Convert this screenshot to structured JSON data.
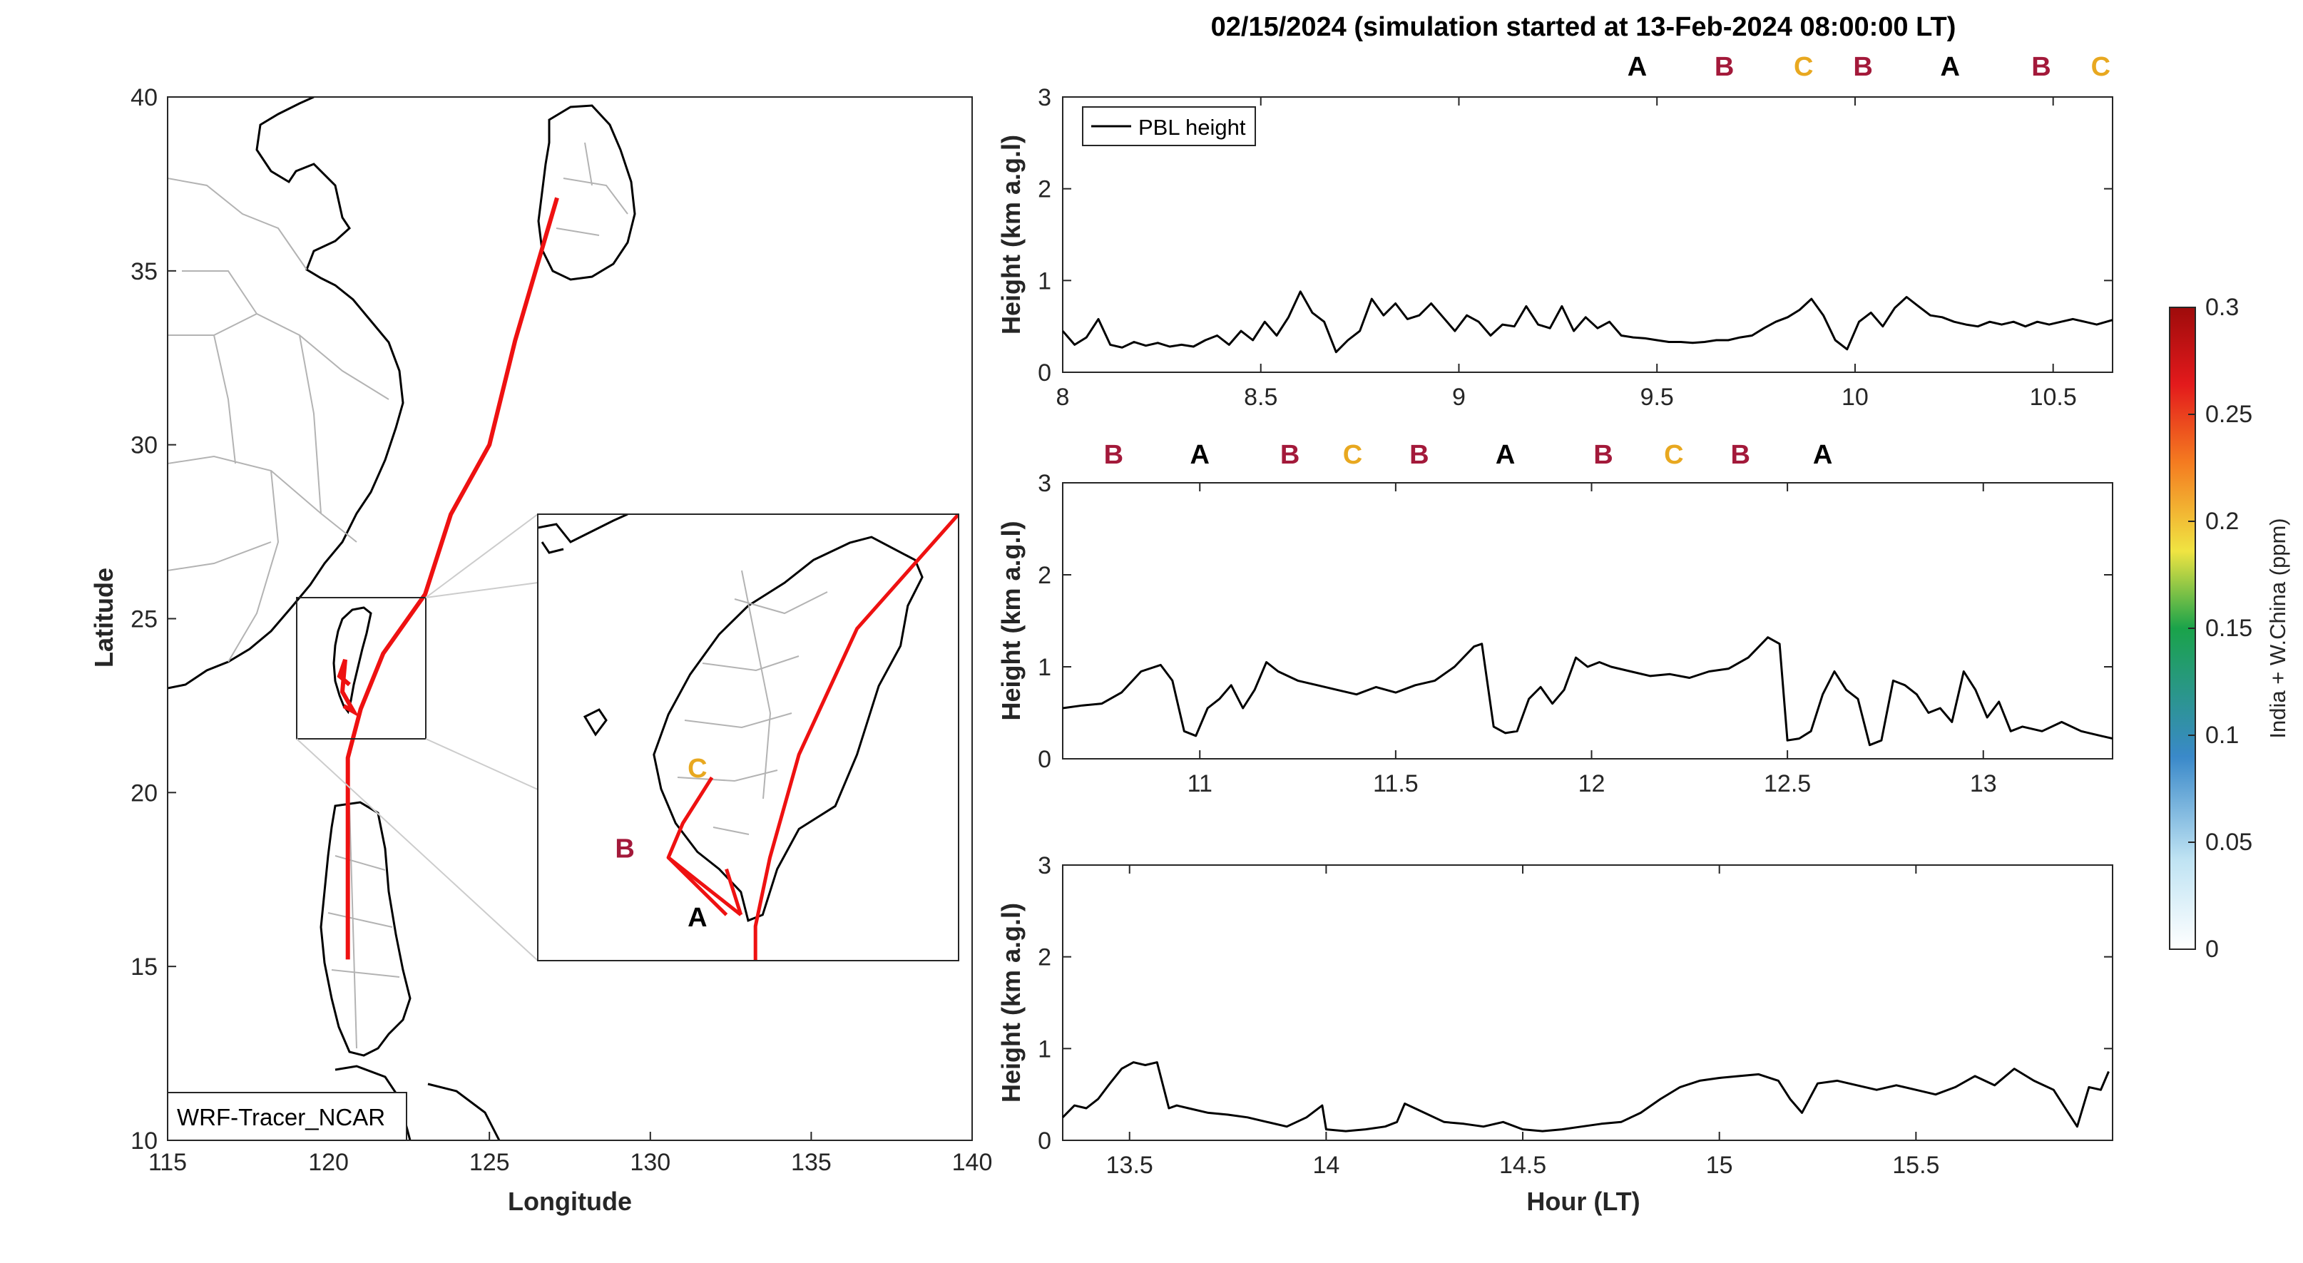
{
  "title": "02/15/2024 (simulation started at 13-Feb-2024 08:00:00 LT)",
  "letter_colors": {
    "A": "#000000",
    "B": "#a3193a",
    "C": "#e8a820"
  },
  "chart_data": [
    {
      "type": "map",
      "xlabel": "Longitude",
      "ylabel": "Latitude",
      "xlim": [
        115,
        140
      ],
      "ylim": [
        10,
        40
      ],
      "xticks": [
        115,
        120,
        125,
        130,
        135,
        140
      ],
      "yticks": [
        10,
        15,
        20,
        25,
        30,
        35,
        40
      ],
      "watermark": "WRF-Tracer_NCAR",
      "trajectory_color": "#ee1111",
      "trajectory": [
        [
          127.1,
          37.1
        ],
        [
          125.8,
          33.0
        ],
        [
          125.0,
          30.0
        ],
        [
          123.8,
          28.0
        ],
        [
          123.0,
          25.7
        ],
        [
          121.7,
          24.0
        ],
        [
          121.0,
          22.4
        ],
        [
          120.6,
          21.0
        ],
        [
          120.6,
          18.0
        ],
        [
          120.6,
          15.2
        ]
      ],
      "inset": {
        "xlim": [
          119.3,
          122.2
        ],
        "ylim": [
          21.6,
          25.5
        ],
        "outline": [
          [
            121.6,
            25.3
          ],
          [
            121.9,
            25.1
          ],
          [
            121.95,
            24.95
          ],
          [
            121.85,
            24.7
          ],
          [
            121.8,
            24.35
          ],
          [
            121.65,
            24.0
          ],
          [
            121.5,
            23.4
          ],
          [
            121.35,
            22.95
          ],
          [
            121.1,
            22.75
          ],
          [
            120.95,
            22.4
          ],
          [
            120.85,
            22.0
          ],
          [
            120.75,
            21.95
          ],
          [
            120.7,
            22.2
          ],
          [
            120.55,
            22.4
          ],
          [
            120.4,
            22.55
          ],
          [
            120.25,
            22.8
          ],
          [
            120.15,
            23.1
          ],
          [
            120.1,
            23.4
          ],
          [
            120.2,
            23.75
          ],
          [
            120.35,
            24.1
          ],
          [
            120.55,
            24.45
          ],
          [
            120.75,
            24.7
          ],
          [
            121.0,
            24.9
          ],
          [
            121.2,
            25.1
          ],
          [
            121.45,
            25.25
          ],
          [
            121.6,
            25.3
          ]
        ],
        "paths": [
          [
            [
              122.2,
              25.5
            ],
            [
              121.5,
              24.5
            ],
            [
              121.1,
              23.4
            ],
            [
              120.9,
              22.5
            ],
            [
              120.8,
              21.9
            ],
            [
              120.8,
              21.6
            ]
          ],
          [
            [
              120.5,
              23.2
            ],
            [
              120.3,
              22.8
            ],
            [
              120.2,
              22.5
            ],
            [
              120.5,
              22.2
            ],
            [
              120.7,
              22.0
            ]
          ],
          [
            [
              120.2,
              22.5
            ],
            [
              120.6,
              22.0
            ]
          ],
          [
            [
              120.6,
              22.4
            ],
            [
              120.7,
              22.0
            ]
          ]
        ],
        "labels": [
          {
            "text": "C",
            "lon": 120.4,
            "lat": 23.2
          },
          {
            "text": "B",
            "lon": 119.9,
            "lat": 22.5
          },
          {
            "text": "A",
            "lon": 120.4,
            "lat": 21.9
          }
        ]
      }
    },
    {
      "type": "line",
      "series": [
        {
          "name": "PBL height",
          "x": [
            8.0,
            8.03,
            8.06,
            8.09,
            8.12,
            8.15,
            8.18,
            8.21,
            8.24,
            8.27,
            8.3,
            8.33,
            8.36,
            8.39,
            8.42,
            8.45,
            8.48,
            8.51,
            8.54,
            8.57,
            8.6,
            8.63,
            8.66,
            8.69,
            8.72,
            8.75,
            8.78,
            8.81,
            8.84,
            8.87,
            8.9,
            8.93,
            8.96,
            8.99,
            9.02,
            9.05,
            9.08,
            9.11,
            9.14,
            9.17,
            9.2,
            9.23,
            9.26,
            9.29,
            9.32,
            9.35,
            9.38,
            9.41,
            9.44,
            9.47,
            9.5,
            9.53,
            9.56,
            9.59,
            9.62,
            9.65,
            9.68,
            9.71,
            9.74,
            9.77,
            9.8,
            9.83,
            9.86,
            9.89,
            9.92,
            9.95,
            9.98,
            10.01,
            10.04,
            10.07,
            10.1,
            10.13,
            10.16,
            10.19,
            10.22,
            10.25,
            10.28,
            10.31,
            10.34,
            10.37,
            10.4,
            10.43,
            10.46,
            10.49,
            10.52,
            10.55,
            10.58,
            10.61,
            10.65
          ],
          "y": [
            0.45,
            0.3,
            0.38,
            0.58,
            0.3,
            0.27,
            0.33,
            0.29,
            0.32,
            0.28,
            0.3,
            0.28,
            0.35,
            0.4,
            0.3,
            0.45,
            0.35,
            0.55,
            0.4,
            0.6,
            0.88,
            0.65,
            0.55,
            0.22,
            0.35,
            0.45,
            0.8,
            0.62,
            0.75,
            0.58,
            0.62,
            0.75,
            0.6,
            0.45,
            0.62,
            0.55,
            0.4,
            0.52,
            0.5,
            0.72,
            0.52,
            0.48,
            0.72,
            0.45,
            0.6,
            0.48,
            0.55,
            0.4,
            0.38,
            0.37,
            0.35,
            0.33,
            0.33,
            0.32,
            0.33,
            0.35,
            0.35,
            0.38,
            0.4,
            0.48,
            0.55,
            0.6,
            0.68,
            0.8,
            0.62,
            0.35,
            0.25,
            0.55,
            0.65,
            0.5,
            0.7,
            0.82,
            0.72,
            0.62,
            0.6,
            0.55,
            0.52,
            0.5,
            0.55,
            0.52,
            0.55,
            0.5,
            0.55,
            0.52,
            0.55,
            0.58,
            0.55,
            0.52,
            0.57
          ]
        }
      ],
      "xlim": [
        8,
        10.65
      ],
      "ylim": [
        0,
        3
      ],
      "xticks": [
        8,
        8.5,
        9,
        9.5,
        10,
        10.5
      ],
      "yticks": [
        0,
        1,
        2,
        3
      ],
      "ylabel": "Height (km a.g.l)",
      "xlabel": "",
      "legend": "top-left",
      "markers": [
        {
          "text": "A",
          "x": 9.45
        },
        {
          "text": "B",
          "x": 9.67
        },
        {
          "text": "C",
          "x": 9.87
        },
        {
          "text": "B",
          "x": 10.02
        },
        {
          "text": "A",
          "x": 10.24
        },
        {
          "text": "B",
          "x": 10.47
        },
        {
          "text": "C",
          "x": 10.62
        }
      ]
    },
    {
      "type": "line",
      "series": [
        {
          "name": "PBL height",
          "x": [
            10.65,
            10.7,
            10.75,
            10.8,
            10.85,
            10.9,
            10.93,
            10.96,
            10.99,
            11.02,
            11.05,
            11.08,
            11.11,
            11.14,
            11.17,
            11.2,
            11.25,
            11.3,
            11.35,
            11.4,
            11.45,
            11.5,
            11.55,
            11.6,
            11.65,
            11.7,
            11.72,
            11.75,
            11.78,
            11.81,
            11.84,
            11.87,
            11.9,
            11.93,
            11.96,
            11.99,
            12.02,
            12.05,
            12.1,
            12.15,
            12.2,
            12.25,
            12.3,
            12.35,
            12.4,
            12.45,
            12.48,
            12.5,
            12.53,
            12.56,
            12.59,
            12.62,
            12.65,
            12.68,
            12.71,
            12.74,
            12.77,
            12.8,
            12.83,
            12.86,
            12.89,
            12.92,
            12.95,
            12.98,
            13.01,
            13.04,
            13.07,
            13.1,
            13.15,
            13.2,
            13.25,
            13.3,
            13.33
          ],
          "y": [
            0.55,
            0.58,
            0.6,
            0.72,
            0.95,
            1.02,
            0.85,
            0.3,
            0.25,
            0.55,
            0.65,
            0.8,
            0.55,
            0.75,
            1.05,
            0.95,
            0.85,
            0.8,
            0.75,
            0.7,
            0.78,
            0.72,
            0.8,
            0.85,
            1.0,
            1.22,
            1.25,
            0.35,
            0.28,
            0.3,
            0.65,
            0.78,
            0.6,
            0.75,
            1.1,
            1.0,
            1.05,
            1.0,
            0.95,
            0.9,
            0.92,
            0.88,
            0.95,
            0.98,
            1.1,
            1.32,
            1.25,
            0.2,
            0.22,
            0.3,
            0.7,
            0.95,
            0.75,
            0.65,
            0.15,
            0.2,
            0.85,
            0.8,
            0.7,
            0.5,
            0.55,
            0.4,
            0.95,
            0.75,
            0.45,
            0.62,
            0.3,
            0.35,
            0.3,
            0.4,
            0.3,
            0.25,
            0.22
          ]
        }
      ],
      "xlim": [
        10.65,
        13.33
      ],
      "ylim": [
        0,
        3
      ],
      "xticks": [
        11,
        11.5,
        12,
        12.5,
        13
      ],
      "yticks": [
        0,
        1,
        2,
        3
      ],
      "ylabel": "Height (km a.g.l)",
      "xlabel": "",
      "markers": [
        {
          "text": "B",
          "x": 10.78
        },
        {
          "text": "A",
          "x": 11.0
        },
        {
          "text": "B",
          "x": 11.23
        },
        {
          "text": "C",
          "x": 11.39
        },
        {
          "text": "B",
          "x": 11.56
        },
        {
          "text": "A",
          "x": 11.78
        },
        {
          "text": "B",
          "x": 12.03
        },
        {
          "text": "C",
          "x": 12.21
        },
        {
          "text": "B",
          "x": 12.38
        },
        {
          "text": "A",
          "x": 12.59
        }
      ]
    },
    {
      "type": "line",
      "series": [
        {
          "name": "PBL height",
          "x": [
            13.33,
            13.36,
            13.39,
            13.42,
            13.45,
            13.48,
            13.51,
            13.54,
            13.57,
            13.6,
            13.62,
            13.65,
            13.7,
            13.75,
            13.8,
            13.85,
            13.9,
            13.95,
            13.99,
            14.0,
            14.05,
            14.1,
            14.15,
            14.18,
            14.2,
            14.25,
            14.3,
            14.35,
            14.4,
            14.45,
            14.5,
            14.55,
            14.6,
            14.65,
            14.7,
            14.75,
            14.8,
            14.85,
            14.9,
            14.95,
            15.0,
            15.05,
            15.1,
            15.15,
            15.18,
            15.21,
            15.25,
            15.3,
            15.35,
            15.4,
            15.45,
            15.5,
            15.55,
            15.6,
            15.65,
            15.7,
            15.75,
            15.8,
            15.85,
            15.88,
            15.91,
            15.94,
            15.97,
            15.99
          ],
          "y": [
            0.25,
            0.38,
            0.35,
            0.45,
            0.62,
            0.78,
            0.85,
            0.82,
            0.85,
            0.35,
            0.38,
            0.35,
            0.3,
            0.28,
            0.25,
            0.2,
            0.15,
            0.25,
            0.38,
            0.12,
            0.1,
            0.12,
            0.15,
            0.2,
            0.4,
            0.3,
            0.2,
            0.18,
            0.15,
            0.2,
            0.12,
            0.1,
            0.12,
            0.15,
            0.18,
            0.2,
            0.3,
            0.45,
            0.58,
            0.65,
            0.68,
            0.7,
            0.72,
            0.65,
            0.45,
            0.3,
            0.62,
            0.65,
            0.6,
            0.55,
            0.6,
            0.55,
            0.5,
            0.58,
            0.7,
            0.6,
            0.78,
            0.65,
            0.55,
            0.35,
            0.15,
            0.58,
            0.55,
            0.75
          ]
        }
      ],
      "xlim": [
        13.33,
        16.0
      ],
      "ylim": [
        0,
        3
      ],
      "xticks": [
        13.5,
        14,
        14.5,
        15,
        15.5
      ],
      "yticks": [
        0,
        1,
        2,
        3
      ],
      "ylabel": "Height (km a.g.l)",
      "xlabel": "Hour (LT)",
      "markers": []
    }
  ],
  "colorbar": {
    "label": "India + W.China (ppm)",
    "ticks": [
      0,
      0.05,
      0.1,
      0.15,
      0.2,
      0.25,
      0.3
    ],
    "colors": [
      "#ffffff",
      "#bfe3f3",
      "#3a89c9",
      "#1aa34a",
      "#f0e442",
      "#f47a20",
      "#e31a1c",
      "#9e0b0b"
    ]
  }
}
